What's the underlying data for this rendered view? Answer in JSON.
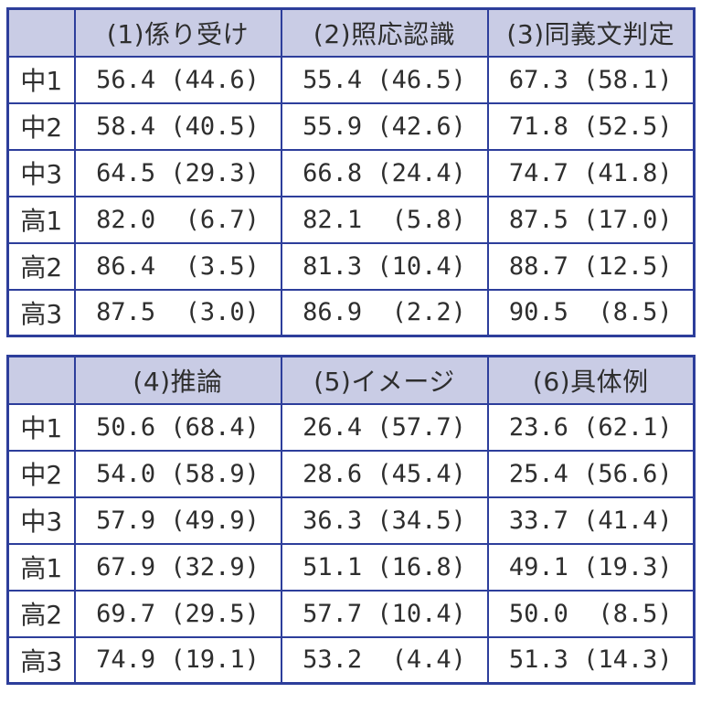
{
  "colors": {
    "table_border": "#2d3e9b",
    "header_fill": "#c9cce5",
    "text": "#2e2e2e",
    "page_background": "#ffffff"
  },
  "chart_data": [
    {
      "type": "table",
      "corner_label": "",
      "columns": [
        "(1)係り受け",
        "(2)照応認識",
        "(3)同義文判定"
      ],
      "row_labels": [
        "中1",
        "中2",
        "中3",
        "高1",
        "高2",
        "高3"
      ],
      "cells": [
        [
          {
            "v": "56.4",
            "p": "(44.6)"
          },
          {
            "v": "55.4",
            "p": "(46.5)"
          },
          {
            "v": "67.3",
            "p": "(58.1)"
          }
        ],
        [
          {
            "v": "58.4",
            "p": "(40.5)"
          },
          {
            "v": "55.9",
            "p": "(42.6)"
          },
          {
            "v": "71.8",
            "p": "(52.5)"
          }
        ],
        [
          {
            "v": "64.5",
            "p": "(29.3)"
          },
          {
            "v": "66.8",
            "p": "(24.4)"
          },
          {
            "v": "74.7",
            "p": "(41.8)"
          }
        ],
        [
          {
            "v": "82.0",
            "p": "(6.7)"
          },
          {
            "v": "82.1",
            "p": "(5.8)"
          },
          {
            "v": "87.5",
            "p": "(17.0)"
          }
        ],
        [
          {
            "v": "86.4",
            "p": "(3.5)"
          },
          {
            "v": "81.3",
            "p": "(10.4)"
          },
          {
            "v": "88.7",
            "p": "(12.5)"
          }
        ],
        [
          {
            "v": "87.5",
            "p": "(3.0)"
          },
          {
            "v": "86.9",
            "p": "(2.2)"
          },
          {
            "v": "90.5",
            "p": "(8.5)"
          }
        ]
      ]
    },
    {
      "type": "table",
      "corner_label": "",
      "columns": [
        "(4)推論",
        "(5)イメージ",
        "(6)具体例"
      ],
      "row_labels": [
        "中1",
        "中2",
        "中3",
        "高1",
        "高2",
        "高3"
      ],
      "cells": [
        [
          {
            "v": "50.6",
            "p": "(68.4)"
          },
          {
            "v": "26.4",
            "p": "(57.7)"
          },
          {
            "v": "23.6",
            "p": "(62.1)"
          }
        ],
        [
          {
            "v": "54.0",
            "p": "(58.9)"
          },
          {
            "v": "28.6",
            "p": "(45.4)"
          },
          {
            "v": "25.4",
            "p": "(56.6)"
          }
        ],
        [
          {
            "v": "57.9",
            "p": "(49.9)"
          },
          {
            "v": "36.3",
            "p": "(34.5)"
          },
          {
            "v": "33.7",
            "p": "(41.4)"
          }
        ],
        [
          {
            "v": "67.9",
            "p": "(32.9)"
          },
          {
            "v": "51.1",
            "p": "(16.8)"
          },
          {
            "v": "49.1",
            "p": "(19.3)"
          }
        ],
        [
          {
            "v": "69.7",
            "p": "(29.5)"
          },
          {
            "v": "57.7",
            "p": "(10.4)"
          },
          {
            "v": "50.0",
            "p": "(8.5)"
          }
        ],
        [
          {
            "v": "74.9",
            "p": "(19.1)"
          },
          {
            "v": "53.2",
            "p": "(4.4)"
          },
          {
            "v": "51.3",
            "p": "(14.3)"
          }
        ]
      ]
    }
  ]
}
